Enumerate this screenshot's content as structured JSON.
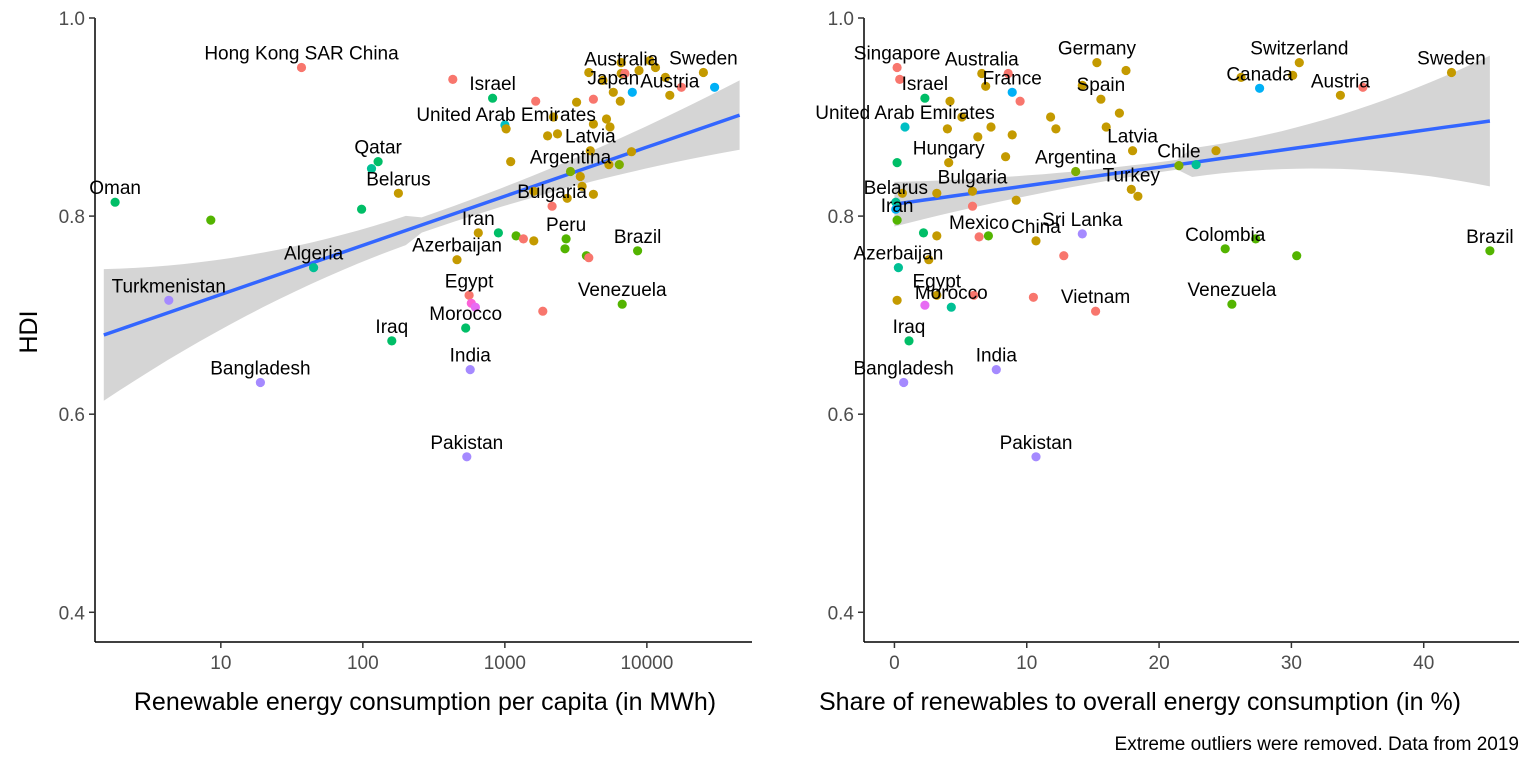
{
  "figure": {
    "caption": "Extreme outliers were removed. Data from 2019",
    "trend_color": "#3366FF",
    "ribbon_color": "#d3d3d3"
  },
  "chart_data": [
    {
      "type": "scatter",
      "title": "",
      "xlabel": "Renewable energy consumption per capita (in MWh)",
      "ylabel": "HDI",
      "x_scale": "log10",
      "xlim": [
        1.3,
        55000
      ],
      "ylim": [
        0.37,
        1.0
      ],
      "x_ticks": [
        10,
        100,
        1000,
        10000
      ],
      "x_tick_labels": [
        "10",
        "100",
        "1000",
        "10000"
      ],
      "y_ticks": [
        0.4,
        0.6,
        0.8,
        1.0
      ],
      "y_tick_labels": [
        "0.4",
        "0.6",
        "0.8",
        "1.0"
      ],
      "trend": {
        "x": [
          1.5,
          45000
        ],
        "y": [
          0.68,
          0.902
        ],
        "ci_lower": [
          0.612,
          0.868
        ],
        "ci_upper": [
          0.745,
          0.938
        ]
      },
      "grid": false,
      "legend": "none",
      "points": [
        {
          "label": "Oman",
          "x": 1.8,
          "y": 0.814,
          "color": "#00BE67"
        },
        {
          "label": "",
          "x": 8.5,
          "y": 0.796,
          "color": "#53B400"
        },
        {
          "label": "Turkmenistan",
          "x": 4.3,
          "y": 0.715,
          "color": "#A58AFF"
        },
        {
          "label": "Bangladesh",
          "x": 19,
          "y": 0.632,
          "color": "#A58AFF"
        },
        {
          "label": "Hong Kong SAR China",
          "x": 37,
          "y": 0.95,
          "color": "#F8766D"
        },
        {
          "label": "Algeria",
          "x": 45,
          "y": 0.748,
          "color": "#00C094"
        },
        {
          "label": "",
          "x": 98,
          "y": 0.807,
          "color": "#00BE67"
        },
        {
          "label": "Qatar",
          "x": 128,
          "y": 0.855,
          "color": "#00BE67"
        },
        {
          "label": "",
          "x": 115,
          "y": 0.848,
          "color": "#00C094"
        },
        {
          "label": "Iraq",
          "x": 160,
          "y": 0.674,
          "color": "#00BE67"
        },
        {
          "label": "Belarus",
          "x": 178,
          "y": 0.823,
          "color": "#C49A00"
        },
        {
          "label": "",
          "x": 430,
          "y": 0.938,
          "color": "#F8766D"
        },
        {
          "label": "Israel",
          "x": 820,
          "y": 0.919,
          "color": "#00BE67"
        },
        {
          "label": "",
          "x": 1000,
          "y": 0.892,
          "color": "#00BFC4"
        },
        {
          "label": "United Arab Emirates",
          "x": 1020,
          "y": 0.888,
          "color": "#C49A00"
        },
        {
          "label": "",
          "x": 1650,
          "y": 0.916,
          "color": "#F8766D"
        },
        {
          "label": "",
          "x": 2200,
          "y": 0.9,
          "color": "#C49A00"
        },
        {
          "label": "",
          "x": 2000,
          "y": 0.881,
          "color": "#C49A00"
        },
        {
          "label": "",
          "x": 2350,
          "y": 0.883,
          "color": "#C49A00"
        },
        {
          "label": "",
          "x": 1100,
          "y": 0.855,
          "color": "#C49A00"
        },
        {
          "label": "Azerbaijan",
          "x": 460,
          "y": 0.756,
          "color": "#C49A00"
        },
        {
          "label": "Egypt",
          "x": 560,
          "y": 0.72,
          "color": "#F8766D"
        },
        {
          "label": "",
          "x": 580,
          "y": 0.712,
          "color": "#FB61D7"
        },
        {
          "label": "",
          "x": 620,
          "y": 0.708,
          "color": "#E76BF3"
        },
        {
          "label": "Morocco",
          "x": 530,
          "y": 0.687,
          "color": "#00BE67"
        },
        {
          "label": "India",
          "x": 570,
          "y": 0.645,
          "color": "#A58AFF"
        },
        {
          "label": "Pakistan",
          "x": 540,
          "y": 0.557,
          "color": "#A58AFF"
        },
        {
          "label": "Iran",
          "x": 650,
          "y": 0.783,
          "color": "#C49A00"
        },
        {
          "label": "",
          "x": 900,
          "y": 0.783,
          "color": "#00BE67"
        },
        {
          "label": "",
          "x": 1200,
          "y": 0.78,
          "color": "#53B400"
        },
        {
          "label": "",
          "x": 1350,
          "y": 0.777,
          "color": "#F8766D"
        },
        {
          "label": "",
          "x": 1600,
          "y": 0.775,
          "color": "#C49A00"
        },
        {
          "label": "",
          "x": 1850,
          "y": 0.704,
          "color": "#F8766D"
        },
        {
          "label": "Bulgaria",
          "x": 2150,
          "y": 0.81,
          "color": "#F8766D"
        },
        {
          "label": "",
          "x": 1600,
          "y": 0.825,
          "color": "#C49A00"
        },
        {
          "label": "Argentina",
          "x": 2900,
          "y": 0.845,
          "color": "#7CAE00"
        },
        {
          "label": "",
          "x": 3400,
          "y": 0.84,
          "color": "#C49A00"
        },
        {
          "label": "",
          "x": 2750,
          "y": 0.818,
          "color": "#C49A00"
        },
        {
          "label": "",
          "x": 3500,
          "y": 0.83,
          "color": "#C49A00"
        },
        {
          "label": "",
          "x": 4200,
          "y": 0.822,
          "color": "#C49A00"
        },
        {
          "label": "Peru",
          "x": 2700,
          "y": 0.777,
          "color": "#53B400"
        },
        {
          "label": "",
          "x": 2650,
          "y": 0.767,
          "color": "#53B400"
        },
        {
          "label": "",
          "x": 3750,
          "y": 0.76,
          "color": "#53B400"
        },
        {
          "label": "",
          "x": 3900,
          "y": 0.758,
          "color": "#F8766D"
        },
        {
          "label": "Venezuela",
          "x": 6700,
          "y": 0.711,
          "color": "#53B400"
        },
        {
          "label": "Brazil",
          "x": 8600,
          "y": 0.765,
          "color": "#53B400"
        },
        {
          "label": "Latvia",
          "x": 4000,
          "y": 0.866,
          "color": "#C49A00"
        },
        {
          "label": "",
          "x": 5400,
          "y": 0.852,
          "color": "#C49A00"
        },
        {
          "label": "",
          "x": 6400,
          "y": 0.852,
          "color": "#7CAE00"
        },
        {
          "label": "",
          "x": 7800,
          "y": 0.865,
          "color": "#C49A00"
        },
        {
          "label": "",
          "x": 4200,
          "y": 0.893,
          "color": "#C49A00"
        },
        {
          "label": "",
          "x": 5200,
          "y": 0.898,
          "color": "#C49A00"
        },
        {
          "label": "",
          "x": 5500,
          "y": 0.89,
          "color": "#C49A00"
        },
        {
          "label": "",
          "x": 3200,
          "y": 0.915,
          "color": "#C49A00"
        },
        {
          "label": "",
          "x": 4200,
          "y": 0.918,
          "color": "#F8766D"
        },
        {
          "label": "",
          "x": 6500,
          "y": 0.916,
          "color": "#C49A00"
        },
        {
          "label": "Japan",
          "x": 5800,
          "y": 0.925,
          "color": "#C49A00"
        },
        {
          "label": "",
          "x": 7900,
          "y": 0.925,
          "color": "#00B0F6"
        },
        {
          "label": "Australia",
          "x": 6600,
          "y": 0.944,
          "color": "#C49A00"
        },
        {
          "label": "",
          "x": 3900,
          "y": 0.945,
          "color": "#C49A00"
        },
        {
          "label": "",
          "x": 4900,
          "y": 0.937,
          "color": "#C49A00"
        },
        {
          "label": "",
          "x": 7000,
          "y": 0.944,
          "color": "#F8766D"
        },
        {
          "label": "",
          "x": 6600,
          "y": 0.955,
          "color": "#C49A00"
        },
        {
          "label": "",
          "x": 8800,
          "y": 0.947,
          "color": "#C49A00"
        },
        {
          "label": "",
          "x": 10500,
          "y": 0.957,
          "color": "#C49A00"
        },
        {
          "label": "",
          "x": 11500,
          "y": 0.95,
          "color": "#C49A00"
        },
        {
          "label": "",
          "x": 13500,
          "y": 0.94,
          "color": "#C49A00"
        },
        {
          "label": "Austria",
          "x": 14500,
          "y": 0.922,
          "color": "#C49A00"
        },
        {
          "label": "",
          "x": 17500,
          "y": 0.93,
          "color": "#F8766D"
        },
        {
          "label": "Sweden",
          "x": 25000,
          "y": 0.945,
          "color": "#C49A00"
        },
        {
          "label": "",
          "x": 30000,
          "y": 0.93,
          "color": "#00B0F6"
        }
      ]
    },
    {
      "type": "scatter",
      "title": "",
      "xlabel": "Share of renewables to overall energy consumption (in %)",
      "ylabel": "",
      "xlim": [
        -2.3,
        47.2
      ],
      "ylim": [
        0.37,
        1.0
      ],
      "x_ticks": [
        0,
        10,
        20,
        30,
        40
      ],
      "x_tick_labels": [
        "0",
        "10",
        "20",
        "30",
        "40"
      ],
      "y_ticks": [
        0.4,
        0.6,
        0.8,
        1.0
      ],
      "y_tick_labels": [
        "0.4",
        "0.6",
        "0.8",
        "1.0"
      ],
      "trend": {
        "x": [
          0,
          45
        ],
        "y": [
          0.812,
          0.896
        ],
        "ci_lower": [
          0.79,
          0.83
        ],
        "ci_upper": [
          0.835,
          0.962
        ]
      },
      "grid": false,
      "legend": "none",
      "points": [
        {
          "label": "Singapore",
          "x": 0.2,
          "y": 0.95,
          "color": "#F8766D"
        },
        {
          "label": "",
          "x": 0.4,
          "y": 0.938,
          "color": "#F8766D"
        },
        {
          "label": "Israel",
          "x": 2.3,
          "y": 0.919,
          "color": "#00BE67"
        },
        {
          "label": "United Arab Emirates",
          "x": 0.8,
          "y": 0.89,
          "color": "#00BFC4"
        },
        {
          "label": "",
          "x": 0.2,
          "y": 0.854,
          "color": "#00BE67"
        },
        {
          "label": "Belarus",
          "x": 0.1,
          "y": 0.814,
          "color": "#00C094"
        },
        {
          "label": "",
          "x": 0.6,
          "y": 0.823,
          "color": "#C49A00"
        },
        {
          "label": "Iran",
          "x": 0.2,
          "y": 0.796,
          "color": "#53B400"
        },
        {
          "label": "",
          "x": 0.1,
          "y": 0.807,
          "color": "#00B0F6"
        },
        {
          "label": "Azerbaijan",
          "x": 0.3,
          "y": 0.748,
          "color": "#00C094"
        },
        {
          "label": "",
          "x": 0.2,
          "y": 0.715,
          "color": "#C49A00"
        },
        {
          "label": "Iraq",
          "x": 1.1,
          "y": 0.674,
          "color": "#00BE67"
        },
        {
          "label": "Bangladesh",
          "x": 0.7,
          "y": 0.632,
          "color": "#A58AFF"
        },
        {
          "label": "",
          "x": 2.2,
          "y": 0.783,
          "color": "#00BE67"
        },
        {
          "label": "",
          "x": 2.6,
          "y": 0.756,
          "color": "#C49A00"
        },
        {
          "label": "",
          "x": 3.2,
          "y": 0.78,
          "color": "#C49A00"
        },
        {
          "label": "",
          "x": 3.2,
          "y": 0.823,
          "color": "#C49A00"
        },
        {
          "label": "Egypt",
          "x": 3.2,
          "y": 0.72,
          "color": "#C49A00"
        },
        {
          "label": "",
          "x": 2.3,
          "y": 0.71,
          "color": "#E76BF3"
        },
        {
          "label": "Morocco",
          "x": 4.3,
          "y": 0.708,
          "color": "#00C094"
        },
        {
          "label": "",
          "x": 6.0,
          "y": 0.72,
          "color": "#F8766D"
        },
        {
          "label": "India",
          "x": 7.7,
          "y": 0.645,
          "color": "#A58AFF"
        },
        {
          "label": "Pakistan",
          "x": 10.7,
          "y": 0.557,
          "color": "#A58AFF"
        },
        {
          "label": "Mexico",
          "x": 6.4,
          "y": 0.779,
          "color": "#F8766D"
        },
        {
          "label": "",
          "x": 7.1,
          "y": 0.78,
          "color": "#53B400"
        },
        {
          "label": "",
          "x": 5.9,
          "y": 0.81,
          "color": "#F8766D"
        },
        {
          "label": "Bulgaria",
          "x": 5.9,
          "y": 0.825,
          "color": "#C49A00"
        },
        {
          "label": "",
          "x": 9.2,
          "y": 0.816,
          "color": "#C49A00"
        },
        {
          "label": "Hungary",
          "x": 4.1,
          "y": 0.854,
          "color": "#C49A00"
        },
        {
          "label": "",
          "x": 8.4,
          "y": 0.86,
          "color": "#C49A00"
        },
        {
          "label": "",
          "x": 4.0,
          "y": 0.888,
          "color": "#C49A00"
        },
        {
          "label": "",
          "x": 5.1,
          "y": 0.9,
          "color": "#C49A00"
        },
        {
          "label": "",
          "x": 4.2,
          "y": 0.916,
          "color": "#C49A00"
        },
        {
          "label": "",
          "x": 6.3,
          "y": 0.88,
          "color": "#C49A00"
        },
        {
          "label": "",
          "x": 7.3,
          "y": 0.89,
          "color": "#C49A00"
        },
        {
          "label": "",
          "x": 8.9,
          "y": 0.882,
          "color": "#C49A00"
        },
        {
          "label": "Australia",
          "x": 6.6,
          "y": 0.944,
          "color": "#C49A00"
        },
        {
          "label": "",
          "x": 8.6,
          "y": 0.944,
          "color": "#F8766D"
        },
        {
          "label": "",
          "x": 6.9,
          "y": 0.931,
          "color": "#C49A00"
        },
        {
          "label": "France",
          "x": 8.9,
          "y": 0.925,
          "color": "#00B0F6"
        },
        {
          "label": "",
          "x": 9.5,
          "y": 0.916,
          "color": "#F8766D"
        },
        {
          "label": "",
          "x": 11.8,
          "y": 0.9,
          "color": "#C49A00"
        },
        {
          "label": "",
          "x": 12.2,
          "y": 0.888,
          "color": "#C49A00"
        },
        {
          "label": "Germany",
          "x": 15.3,
          "y": 0.955,
          "color": "#C49A00"
        },
        {
          "label": "",
          "x": 17.5,
          "y": 0.947,
          "color": "#C49A00"
        },
        {
          "label": "",
          "x": 14.2,
          "y": 0.932,
          "color": "#C49A00"
        },
        {
          "label": "Spain",
          "x": 15.6,
          "y": 0.918,
          "color": "#C49A00"
        },
        {
          "label": "",
          "x": 17.0,
          "y": 0.904,
          "color": "#C49A00"
        },
        {
          "label": "Latvia",
          "x": 18.0,
          "y": 0.866,
          "color": "#C49A00"
        },
        {
          "label": "",
          "x": 16.0,
          "y": 0.89,
          "color": "#C49A00"
        },
        {
          "label": "Argentina",
          "x": 13.7,
          "y": 0.845,
          "color": "#7CAE00"
        },
        {
          "label": "Turkey",
          "x": 17.9,
          "y": 0.827,
          "color": "#C49A00"
        },
        {
          "label": "",
          "x": 18.4,
          "y": 0.82,
          "color": "#C49A00"
        },
        {
          "label": "Sri Lanka",
          "x": 14.2,
          "y": 0.782,
          "color": "#A58AFF"
        },
        {
          "label": "China",
          "x": 10.7,
          "y": 0.775,
          "color": "#C49A00"
        },
        {
          "label": "",
          "x": 12.8,
          "y": 0.76,
          "color": "#F8766D"
        },
        {
          "label": "Vietnam",
          "x": 15.2,
          "y": 0.704,
          "color": "#F8766D"
        },
        {
          "label": "",
          "x": 10.5,
          "y": 0.718,
          "color": "#F8766D"
        },
        {
          "label": "Chile",
          "x": 21.5,
          "y": 0.851,
          "color": "#7CAE00"
        },
        {
          "label": "",
          "x": 22.8,
          "y": 0.852,
          "color": "#00C094"
        },
        {
          "label": "",
          "x": 24.3,
          "y": 0.866,
          "color": "#C49A00"
        },
        {
          "label": "Colombia",
          "x": 25.0,
          "y": 0.767,
          "color": "#53B400"
        },
        {
          "label": "",
          "x": 27.3,
          "y": 0.777,
          "color": "#53B400"
        },
        {
          "label": "",
          "x": 30.4,
          "y": 0.76,
          "color": "#53B400"
        },
        {
          "label": "Venezuela",
          "x": 25.5,
          "y": 0.711,
          "color": "#53B400"
        },
        {
          "label": "Switzerland",
          "x": 30.6,
          "y": 0.955,
          "color": "#C49A00"
        },
        {
          "label": "",
          "x": 30.1,
          "y": 0.942,
          "color": "#C49A00"
        },
        {
          "label": "Canada",
          "x": 27.6,
          "y": 0.929,
          "color": "#00B0F6"
        },
        {
          "label": "",
          "x": 26.2,
          "y": 0.94,
          "color": "#C49A00"
        },
        {
          "label": "Austria",
          "x": 33.7,
          "y": 0.922,
          "color": "#C49A00"
        },
        {
          "label": "",
          "x": 35.4,
          "y": 0.93,
          "color": "#F8766D"
        },
        {
          "label": "Sweden",
          "x": 42.1,
          "y": 0.945,
          "color": "#C49A00"
        },
        {
          "label": "Brazil",
          "x": 45.0,
          "y": 0.765,
          "color": "#53B400"
        }
      ]
    }
  ]
}
